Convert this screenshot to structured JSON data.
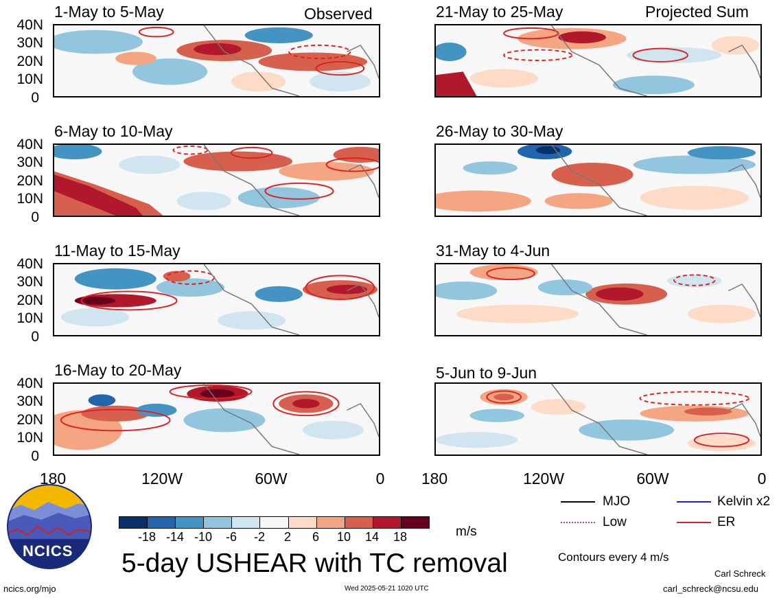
{
  "header": {
    "left_corner": "Observed",
    "right_corner": "Projected Sum"
  },
  "panels_left": [
    {
      "title": "1-May to 5-May"
    },
    {
      "title": "6-May to 10-May"
    },
    {
      "title": "11-May to 15-May"
    },
    {
      "title": "16-May to 20-May"
    }
  ],
  "panels_right": [
    {
      "title": "21-May to 25-May"
    },
    {
      "title": "26-May to 30-May"
    },
    {
      "title": "31-May to 4-Jun"
    },
    {
      "title": "5-Jun to 9-Jun"
    }
  ],
  "axes": {
    "lat_labels": [
      "40N",
      "30N",
      "20N",
      "10N",
      "0"
    ],
    "lon_labels": [
      "180",
      "120W",
      "60W",
      "0"
    ]
  },
  "colorbar": {
    "ticks": [
      "-18",
      "-14",
      "-10",
      "-6",
      "-2",
      "2",
      "6",
      "10",
      "14",
      "18"
    ],
    "units": "m/s",
    "colors": [
      "#08306b",
      "#2166ac",
      "#4393c3",
      "#92c5de",
      "#d1e5f0",
      "#f7f7f7",
      "#fddbc7",
      "#f4a582",
      "#d6604d",
      "#b2182b",
      "#67001f"
    ]
  },
  "legend": {
    "mjo": "MJO",
    "kelvin": "Kelvin x2",
    "low": "Low",
    "er": "ER",
    "contours_note": "Contours every 4 m/s",
    "colors": {
      "mjo": "#000000",
      "kelvin": "#1f1fd0",
      "low": "#9b3fe0",
      "er": "#e0201f"
    }
  },
  "title": "5-day USHEAR with TC removal",
  "footer": {
    "logo_text": "NCICS",
    "url": "ncics.org/mjo",
    "timestamp": "Wed 2025-05-21 1020 UTC",
    "author": "Carl Schreck",
    "email": "carl_schreck@ncsu.edu"
  }
}
